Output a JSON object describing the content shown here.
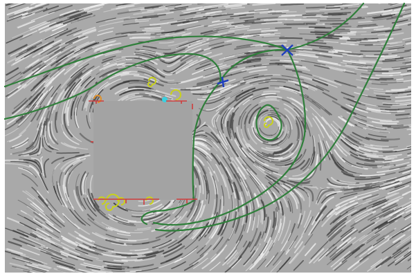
{
  "figure": {
    "background": "#ffffff",
    "flow_base_color": "#a9a9a9",
    "streak_dark": "#3a3a3a",
    "streak_light": "#f2f2f2"
  },
  "colors": {
    "separatrix": "#2f7f3a",
    "obstacle": "#a3a3a3",
    "saddle": "#1f3fbf",
    "attracting_focus": "#c9d21a",
    "repelling_focus": "#e0902a",
    "sink": "#3ad0e0",
    "boundary_tick": "#d03c3c"
  },
  "legend_icons": {
    "saddle": "x-cross-icon",
    "focus": "spiral-icon",
    "sink": "dot-icon",
    "boundary_point": "t-tick-icon"
  }
}
